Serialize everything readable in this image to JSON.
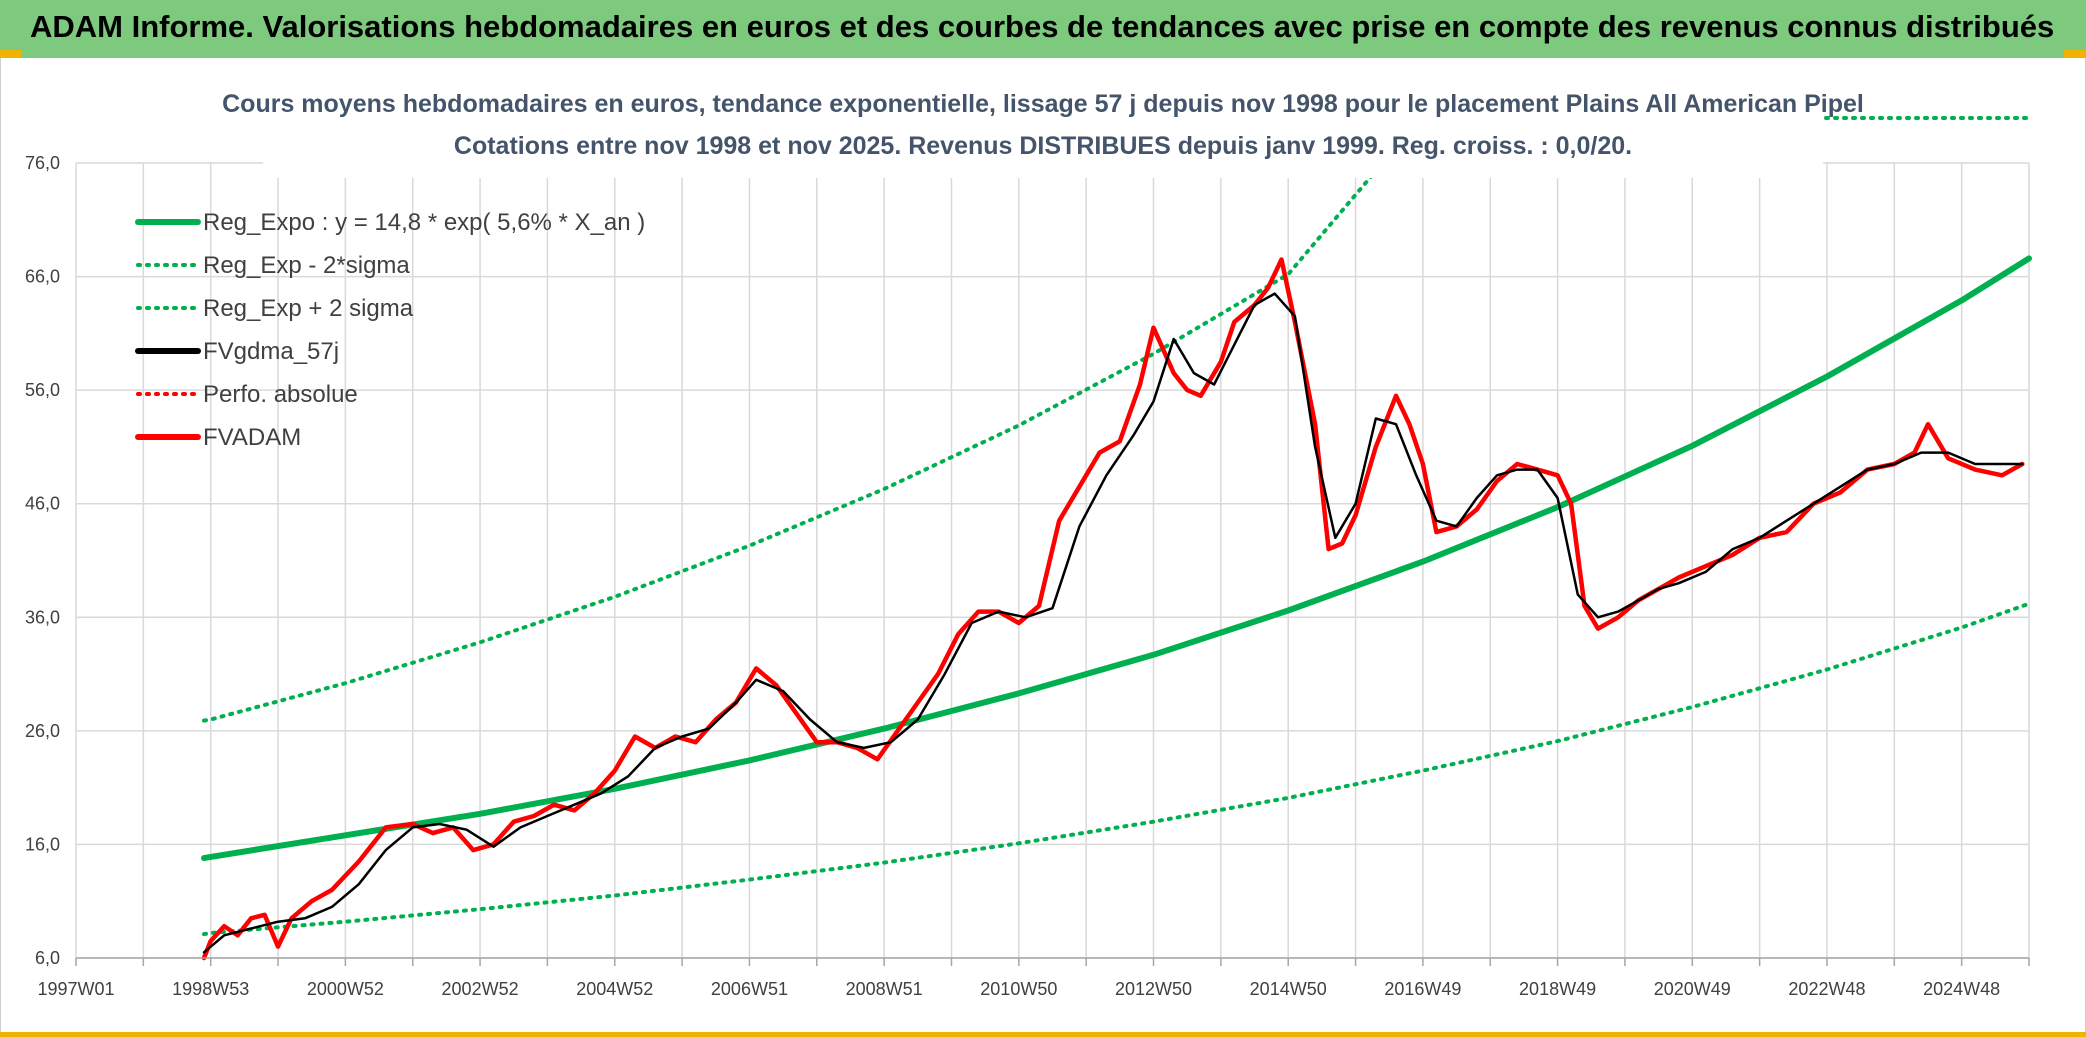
{
  "banner": {
    "title": "ADAM Informe. Valorisations hebdomadaires en euros et des courbes de tendances avec prise en compte des revenus connus distribués"
  },
  "colors": {
    "banner": "#7dc97d",
    "reg": "#00b050",
    "fv": "#ff0000",
    "gdma": "#000000",
    "grid": "#d9d9d9",
    "title": "#44546a"
  },
  "chart_data": {
    "type": "line",
    "title": "Cours moyens hebdomadaires en euros, tendance exponentielle, lissage 57 j depuis nov 1998 pour le placement Plains All American Pipel",
    "subtitle": "Cotations entre nov 1998 et nov 2025. Revenus DISTRIBUES depuis janv 1999. Reg. croiss. : 0,0/20.",
    "xlabel": "",
    "ylabel": "",
    "x_tick_labels": [
      "1997W01",
      "1998W53",
      "2000W52",
      "2002W52",
      "2004W52",
      "2006W51",
      "2008W51",
      "2010W50",
      "2012W50",
      "2014W50",
      "2016W49",
      "2018W49",
      "2020W49",
      "2022W48",
      "2024W48"
    ],
    "x_range_years": [
      1997.0,
      2026.0
    ],
    "y_tick_labels": [
      "6,0",
      "16,0",
      "26,0",
      "36,0",
      "46,0",
      "56,0",
      "66,0",
      "76,0"
    ],
    "ylim": [
      6,
      76
    ],
    "grid": true,
    "legend_position": "top-left",
    "legend": [
      {
        "label": "Reg_Expo : y = 14,8 * exp( 5,6% *  X_an )",
        "color": "#00b050",
        "style": "solid"
      },
      {
        "label": "Reg_Exp - 2*sigma",
        "color": "#00b050",
        "style": "dotted"
      },
      {
        "label": "Reg_Exp + 2 sigma",
        "color": "#00b050",
        "style": "dotted"
      },
      {
        "label": "FVgdma_57j",
        "color": "#000000",
        "style": "solid"
      },
      {
        "label": "Perfo. absolue",
        "color": "#ff0000",
        "style": "dotted"
      },
      {
        "label": "FVADAM",
        "color": "#ff0000",
        "style": "solid"
      }
    ],
    "series": [
      {
        "name": "Reg_Expo : y = 14,8 * exp( 5,6% *  X_an )",
        "x": [
          1998.9,
          1999,
          2001,
          2003,
          2005,
          2007,
          2009,
          2011,
          2013,
          2015,
          2017,
          2019,
          2021,
          2023,
          2025,
          2026
        ],
        "values": [
          14.8,
          14.9,
          16.8,
          18.7,
          20.9,
          23.4,
          26.2,
          29.3,
          32.7,
          36.6,
          40.9,
          45.7,
          51.1,
          57.2,
          63.9,
          67.6
        ]
      },
      {
        "name": "Reg_Exp - 2*sigma",
        "x": [
          1998.9,
          1999,
          2001,
          2003,
          2005,
          2007,
          2009,
          2011,
          2013,
          2015,
          2017,
          2019,
          2021,
          2023,
          2025,
          2026
        ],
        "values": [
          8.1,
          8.2,
          9.2,
          10.3,
          11.5,
          12.9,
          14.4,
          16.1,
          18.0,
          20.1,
          22.5,
          25.1,
          28.1,
          31.4,
          35.1,
          37.2
        ]
      },
      {
        "name": "Reg_Exp + 2 sigma",
        "x": [
          1998.9,
          1999,
          2001,
          2003,
          2005,
          2007,
          2009,
          2011,
          2013,
          2015,
          2016.4
        ],
        "values": [
          26.9,
          27.0,
          30.2,
          33.8,
          37.8,
          42.3,
          47.3,
          52.9,
          59.2,
          66.2,
          76.0
        ]
      },
      {
        "name": "FVgdma_57j",
        "x": [
          1998.9,
          1999.2,
          1999.6,
          2000.0,
          2000.4,
          2000.8,
          2001.2,
          2001.6,
          2002.0,
          2002.4,
          2002.8,
          2003.2,
          2003.6,
          2004.0,
          2004.4,
          2004.8,
          2005.2,
          2005.6,
          2006.0,
          2006.4,
          2006.8,
          2007.1,
          2007.5,
          2007.9,
          2008.3,
          2008.7,
          2009.1,
          2009.5,
          2009.9,
          2010.3,
          2010.7,
          2011.1,
          2011.5,
          2011.9,
          2012.3,
          2012.7,
          2013.0,
          2013.3,
          2013.6,
          2013.9,
          2014.2,
          2014.5,
          2014.8,
          2015.1,
          2015.4,
          2015.7,
          2016.0,
          2016.3,
          2016.6,
          2016.9,
          2017.2,
          2017.5,
          2017.8,
          2018.1,
          2018.4,
          2018.7,
          2019.0,
          2019.3,
          2019.6,
          2019.9,
          2020.2,
          2020.5,
          2020.8,
          2021.2,
          2021.6,
          2022.0,
          2022.4,
          2022.8,
          2023.2,
          2023.6,
          2024.0,
          2024.4,
          2024.8,
          2025.2,
          2025.6,
          2025.9
        ],
        "values": [
          6.5,
          8.0,
          8.6,
          9.2,
          9.5,
          10.5,
          12.5,
          15.5,
          17.5,
          17.8,
          17.3,
          15.8,
          17.5,
          18.5,
          19.5,
          20.5,
          22.0,
          24.5,
          25.5,
          26.2,
          28.5,
          30.5,
          29.5,
          27.0,
          25.0,
          24.5,
          25.0,
          27.0,
          31.0,
          35.5,
          36.5,
          36.0,
          36.8,
          44.0,
          48.5,
          52.0,
          55.0,
          60.5,
          57.5,
          56.5,
          60.0,
          63.5,
          64.5,
          62.5,
          51.0,
          43.0,
          46.0,
          53.5,
          53.0,
          48.5,
          44.5,
          44.0,
          46.5,
          48.5,
          49.0,
          49.0,
          46.5,
          38.0,
          36.0,
          36.5,
          37.5,
          38.5,
          39.0,
          40.0,
          42.0,
          43.0,
          44.5,
          46.0,
          47.5,
          49.0,
          49.5,
          50.5,
          50.5,
          49.5,
          49.5,
          49.5
        ]
      },
      {
        "name": "FVADAM",
        "x": [
          1998.9,
          1999.0,
          1999.2,
          1999.4,
          1999.6,
          1999.8,
          2000.0,
          2000.2,
          2000.4,
          2000.5,
          2000.8,
          2001.2,
          2001.6,
          2002.0,
          2002.3,
          2002.6,
          2002.9,
          2003.2,
          2003.5,
          2003.8,
          2004.1,
          2004.4,
          2004.7,
          2005.0,
          2005.3,
          2005.6,
          2005.9,
          2006.2,
          2006.5,
          2006.8,
          2007.1,
          2007.4,
          2007.7,
          2008.0,
          2008.3,
          2008.6,
          2008.9,
          2009.2,
          2009.5,
          2009.8,
          2010.1,
          2010.4,
          2010.7,
          2011.0,
          2011.3,
          2011.6,
          2011.9,
          2012.2,
          2012.5,
          2012.8,
          2013.0,
          2013.3,
          2013.5,
          2013.7,
          2014.0,
          2014.2,
          2014.5,
          2014.7,
          2014.9,
          2015.1,
          2015.4,
          2015.6,
          2015.8,
          2016.0,
          2016.3,
          2016.6,
          2016.8,
          2017.0,
          2017.2,
          2017.5,
          2017.8,
          2018.1,
          2018.4,
          2018.7,
          2019.0,
          2019.2,
          2019.4,
          2019.6,
          2019.9,
          2020.2,
          2020.5,
          2020.8,
          2021.2,
          2021.6,
          2022.0,
          2022.4,
          2022.8,
          2023.2,
          2023.6,
          2024.0,
          2024.3,
          2024.5,
          2024.8,
          2025.2,
          2025.6,
          2025.9
        ],
        "values": [
          6.0,
          7.5,
          8.8,
          8.0,
          9.5,
          9.8,
          7.0,
          9.5,
          10.5,
          11.0,
          12.0,
          14.5,
          17.5,
          17.8,
          17.0,
          17.5,
          15.5,
          16.0,
          18.0,
          18.5,
          19.5,
          19.0,
          20.5,
          22.5,
          25.5,
          24.5,
          25.5,
          25.0,
          27.0,
          28.5,
          31.5,
          30.0,
          27.5,
          25.0,
          25.0,
          24.5,
          23.5,
          26.0,
          28.5,
          31.0,
          34.5,
          36.5,
          36.5,
          35.5,
          37.0,
          44.5,
          47.5,
          50.5,
          51.5,
          56.5,
          61.5,
          57.5,
          56.0,
          55.5,
          58.5,
          62.0,
          63.5,
          65.0,
          67.5,
          62.0,
          53.0,
          42.0,
          42.5,
          45.0,
          51.0,
          55.5,
          53.0,
          49.5,
          43.5,
          44.0,
          45.5,
          48.0,
          49.5,
          49.0,
          48.5,
          46.0,
          37.0,
          35.0,
          36.0,
          37.5,
          38.5,
          39.5,
          40.5,
          41.5,
          43.0,
          43.5,
          46.0,
          47.0,
          49.0,
          49.5,
          50.5,
          53.0,
          50.0,
          49.0,
          48.5,
          49.5
        ]
      }
    ]
  }
}
